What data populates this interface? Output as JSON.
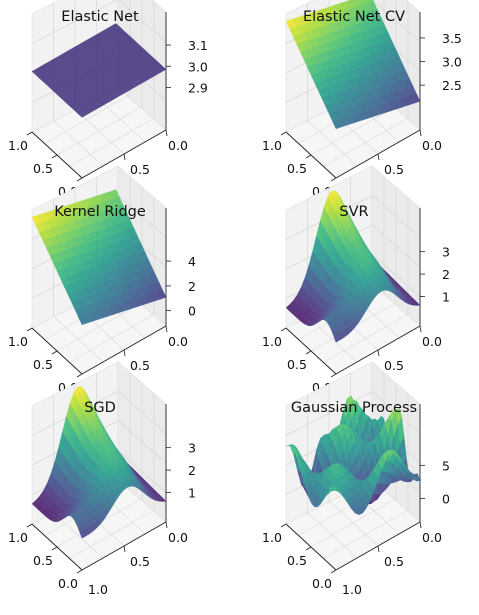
{
  "chart_data": [
    {
      "type": "surface3d",
      "title": "Elastic Net",
      "surface": "flat",
      "colormap": "viridis",
      "z_range": [
        3.1,
        3.1
      ],
      "x_ticks": [
        "0.0",
        "0.5",
        "1.0"
      ],
      "y_ticks": [
        "0.0",
        "0.5",
        "1.0"
      ],
      "z_ticks": [
        "2.9",
        "3.0",
        "3.1"
      ],
      "grid": true
    },
    {
      "type": "surface3d",
      "title": "Elastic Net CV",
      "surface": "plane",
      "colormap": "viridis",
      "z_range": [
        2.4,
        3.8
      ],
      "x_ticks": [
        "0.0",
        "0.5",
        "1.0"
      ],
      "y_ticks": [
        "0.0",
        "0.5",
        "1.0"
      ],
      "z_ticks": [
        "2.5",
        "3.0",
        "3.5"
      ],
      "grid": true
    },
    {
      "type": "surface3d",
      "title": "Kernel Ridge",
      "surface": "plane",
      "colormap": "viridis",
      "z_range": [
        0.0,
        5.0
      ],
      "x_ticks": [
        "0.0",
        "0.5",
        "1.0"
      ],
      "y_ticks": [
        "0.0",
        "0.5",
        "1.0"
      ],
      "z_ticks": [
        "0",
        "2",
        "4"
      ],
      "grid": true
    },
    {
      "type": "surface3d",
      "title": "SVR",
      "surface": "bump",
      "colormap": "viridis",
      "z_range": [
        1.0,
        3.8
      ],
      "x_ticks": [
        "0.0",
        "0.5",
        "1.0"
      ],
      "y_ticks": [
        "0.0",
        "0.5",
        "1.0"
      ],
      "z_ticks": [
        "1",
        "2",
        "3"
      ],
      "grid": true
    },
    {
      "type": "surface3d",
      "title": "SGD",
      "surface": "bump",
      "colormap": "viridis",
      "z_range": [
        1.0,
        3.8
      ],
      "x_ticks": [
        "0.0",
        "0.5",
        "1.0"
      ],
      "y_ticks": [
        "0.0",
        "0.5",
        "1.0"
      ],
      "z_ticks": [
        "1",
        "2",
        "3"
      ],
      "grid": true
    },
    {
      "type": "surface3d",
      "title": "Gaussian Process",
      "surface": "noisy",
      "colormap": "viridis",
      "z_range": [
        -2.0,
        8.0
      ],
      "x_ticks": [
        "0.0",
        "0.5",
        "1.0"
      ],
      "y_ticks": [
        "0.0",
        "0.5",
        "1.0"
      ],
      "z_ticks": [
        "0",
        "5"
      ],
      "grid": true
    }
  ]
}
